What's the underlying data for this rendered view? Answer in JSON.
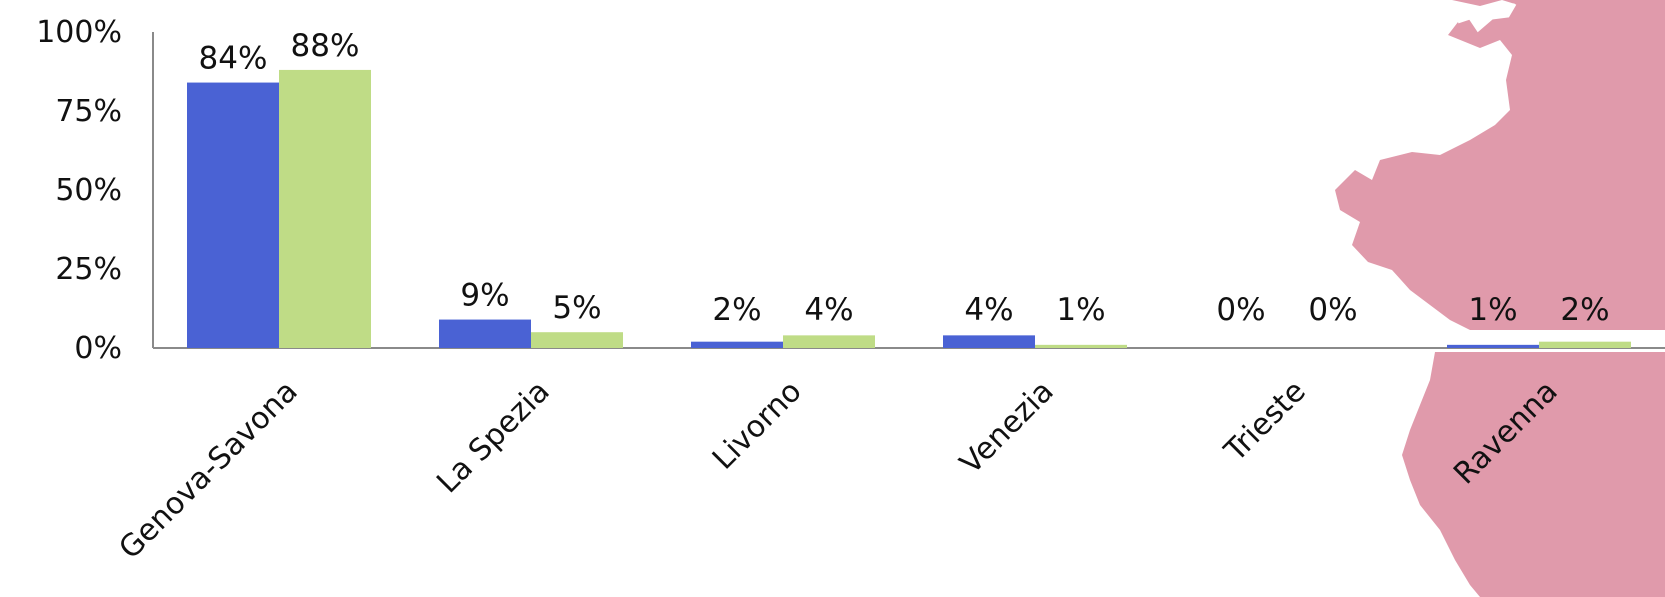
{
  "chart_data": {
    "type": "bar",
    "title": "",
    "xlabel": "",
    "ylabel": "",
    "ylim": [
      0,
      100
    ],
    "yticks": [
      "0%",
      "25%",
      "50%",
      "75%",
      "100%"
    ],
    "ytick_values": [
      0,
      25,
      50,
      75,
      100
    ],
    "categories": [
      "Genova-Savona",
      "La Spezia",
      "Livorno",
      "Venezia",
      "Trieste",
      "Ravenna"
    ],
    "series": [
      {
        "values": [
          84,
          9,
          2,
          4,
          0,
          1
        ],
        "labels": [
          "84%",
          "9%",
          "2%",
          "4%",
          "0%",
          "1%"
        ],
        "color": "#4a62d4"
      },
      {
        "values": [
          88,
          5,
          4,
          1,
          0,
          2
        ],
        "labels": [
          "88%",
          "5%",
          "4%",
          "1%",
          "0%",
          "2%"
        ],
        "color": "#bfdc86"
      }
    ],
    "grid": false,
    "legend": "none"
  },
  "colors": {
    "map": "#e09aab",
    "axis": "#8a8a8a"
  }
}
